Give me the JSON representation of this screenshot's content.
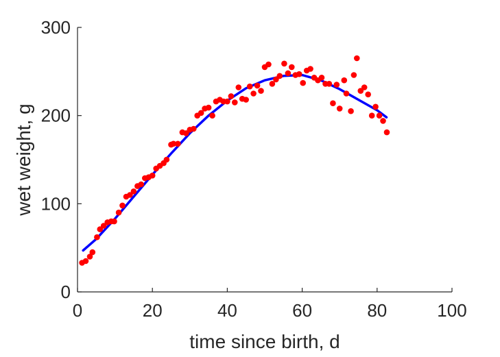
{
  "chart_data": {
    "type": "scatter",
    "title": "",
    "xlabel": "time since birth, d",
    "ylabel": "wet weight, g",
    "xlim": [
      0,
      100
    ],
    "ylim": [
      0,
      300
    ],
    "xticks": [
      0,
      20,
      40,
      60,
      80,
      100
    ],
    "yticks": [
      0,
      100,
      200,
      300
    ],
    "grid": false,
    "legend": "none",
    "series": [
      {
        "kind": "points",
        "color": "#ff0000",
        "points": [
          [
            1.2,
            33
          ],
          [
            2.2,
            35
          ],
          [
            3.3,
            40
          ],
          [
            4.0,
            45
          ],
          [
            5.2,
            62
          ],
          [
            6.0,
            71
          ],
          [
            7.0,
            75
          ],
          [
            8.0,
            79
          ],
          [
            9.0,
            80
          ],
          [
            9.8,
            80
          ],
          [
            11.0,
            90
          ],
          [
            12.0,
            98
          ],
          [
            13.0,
            108
          ],
          [
            14.0,
            110
          ],
          [
            15.0,
            114
          ],
          [
            16.0,
            120
          ],
          [
            17.0,
            122
          ],
          [
            18.0,
            129
          ],
          [
            19.0,
            130
          ],
          [
            20.0,
            132
          ],
          [
            21.0,
            140
          ],
          [
            22.0,
            143
          ],
          [
            23.0,
            146
          ],
          [
            23.8,
            150
          ],
          [
            25.0,
            167
          ],
          [
            25.6,
            168
          ],
          [
            26.8,
            168
          ],
          [
            28.0,
            181
          ],
          [
            29.0,
            180
          ],
          [
            30.0,
            184
          ],
          [
            31.0,
            185
          ],
          [
            32.0,
            200
          ],
          [
            33.0,
            203
          ],
          [
            34.0,
            208
          ],
          [
            35.0,
            209
          ],
          [
            36.0,
            200
          ],
          [
            37.0,
            216
          ],
          [
            38.0,
            218
          ],
          [
            39.0,
            216
          ],
          [
            40.0,
            216
          ],
          [
            41.0,
            222
          ],
          [
            42.0,
            215
          ],
          [
            43.0,
            232
          ],
          [
            44.0,
            219
          ],
          [
            45.0,
            218
          ],
          [
            46.0,
            233
          ],
          [
            47.0,
            225
          ],
          [
            48.0,
            234
          ],
          [
            49.0,
            228
          ],
          [
            50.0,
            255
          ],
          [
            51.0,
            258
          ],
          [
            52.0,
            236
          ],
          [
            53.0,
            241
          ],
          [
            54.0,
            245
          ],
          [
            55.2,
            259
          ],
          [
            56.2,
            248
          ],
          [
            57.2,
            255
          ],
          [
            58.2,
            246
          ],
          [
            59.2,
            247
          ],
          [
            60.2,
            237
          ],
          [
            61.2,
            251
          ],
          [
            62.2,
            253
          ],
          [
            63.2,
            243
          ],
          [
            64.2,
            240
          ],
          [
            65.2,
            243
          ],
          [
            66.2,
            236
          ],
          [
            67.2,
            236
          ],
          [
            68.2,
            214
          ],
          [
            69.2,
            235
          ],
          [
            70.0,
            208
          ],
          [
            71.2,
            240
          ],
          [
            71.8,
            225
          ],
          [
            73.0,
            205
          ],
          [
            73.8,
            246
          ],
          [
            74.6,
            265
          ],
          [
            75.6,
            228
          ],
          [
            76.6,
            232
          ],
          [
            77.6,
            224
          ],
          [
            78.6,
            200
          ],
          [
            79.6,
            210
          ],
          [
            80.6,
            200
          ],
          [
            81.6,
            194
          ],
          [
            82.6,
            181
          ]
        ]
      },
      {
        "kind": "line",
        "color": "#0000ff",
        "points": [
          [
            1.5,
            47
          ],
          [
            5,
            60
          ],
          [
            10,
            83
          ],
          [
            15,
            108
          ],
          [
            20,
            133
          ],
          [
            25,
            157
          ],
          [
            30,
            180
          ],
          [
            35,
            200
          ],
          [
            40,
            217
          ],
          [
            45,
            231
          ],
          [
            50,
            240
          ],
          [
            55,
            245
          ],
          [
            60,
            246
          ],
          [
            65,
            240
          ],
          [
            70,
            230
          ],
          [
            75,
            218
          ],
          [
            80,
            206
          ],
          [
            82.5,
            198
          ]
        ]
      }
    ]
  }
}
